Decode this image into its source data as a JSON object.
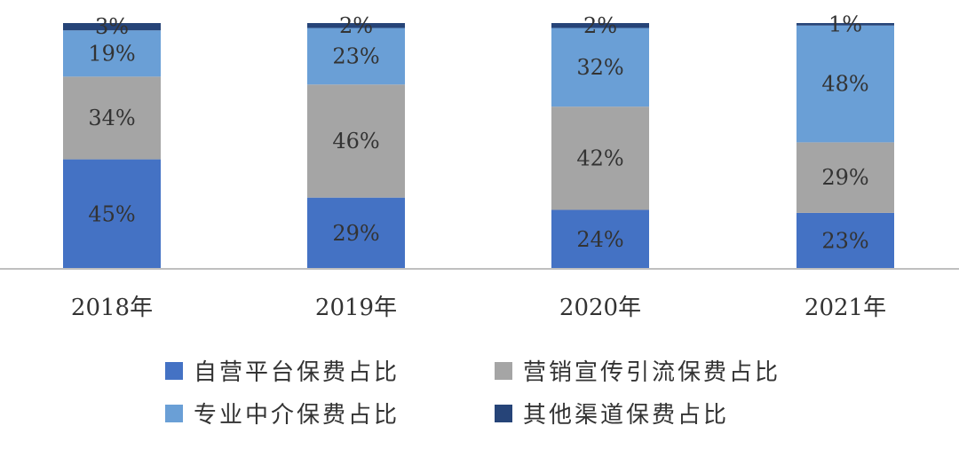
{
  "chart_data": {
    "type": "bar",
    "stacked": true,
    "categories": [
      "2018年",
      "2019年",
      "2020年",
      "2021年"
    ],
    "series": [
      {
        "name": "自营平台保费占比",
        "color": "#4472C4",
        "values": [
          45,
          29,
          24,
          23
        ],
        "labels": [
          "45%",
          "29%",
          "24%",
          "23%"
        ]
      },
      {
        "name": "营销宣传引流保费占比",
        "color": "#A5A5A5",
        "values": [
          34,
          46,
          42,
          29
        ],
        "labels": [
          "34%",
          "46%",
          "42%",
          "29%"
        ]
      },
      {
        "name": "专业中介保费占比",
        "color": "#6A9FD6",
        "values": [
          19,
          23,
          32,
          48
        ],
        "labels": [
          "19%",
          "23%",
          "32%",
          "48%"
        ]
      },
      {
        "name": "其他渠道保费占比",
        "color": "#264478",
        "values": [
          3,
          2,
          2,
          1
        ],
        "labels": [
          "3%",
          "2%",
          "2%",
          "1%"
        ]
      }
    ],
    "ylim": [
      0,
      100
    ],
    "grid": false,
    "legend": "bottom",
    "title": "",
    "xlabel": "",
    "ylabel": ""
  }
}
